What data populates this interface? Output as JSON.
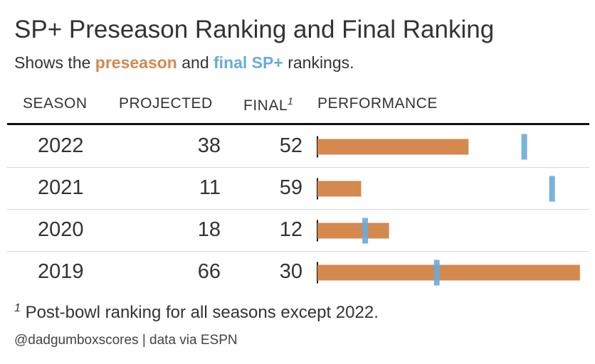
{
  "title": "SP+ Preseason Ranking and Final Ranking",
  "subtitle": {
    "prefix": "Shows the",
    "preseason": "preseason",
    "middle": "and",
    "final": "final SP+",
    "suffix": "rankings."
  },
  "headers": {
    "season": "SEASON",
    "projected": "PROJECTED",
    "final": "FINAL",
    "final_sup": "1",
    "performance": "PERFORMANCE"
  },
  "colors": {
    "preseason": "#d4894f",
    "final": "#6aaad9"
  },
  "chart_data": {
    "type": "table",
    "columns": [
      "SEASON",
      "PROJECTED",
      "FINAL",
      "PERFORMANCE"
    ],
    "rows": [
      {
        "season": "2022",
        "projected": 38,
        "final": 52
      },
      {
        "season": "2021",
        "projected": 11,
        "final": 59
      },
      {
        "season": "2020",
        "projected": 18,
        "final": 12
      },
      {
        "season": "2019",
        "projected": 66,
        "final": 30
      }
    ],
    "bar_domain": [
      0,
      68
    ]
  },
  "footnote": {
    "sup": "1",
    "text": "Post-bowl ranking for all seasons except 2022."
  },
  "source": "@dadgumboxscores | data via ESPN"
}
